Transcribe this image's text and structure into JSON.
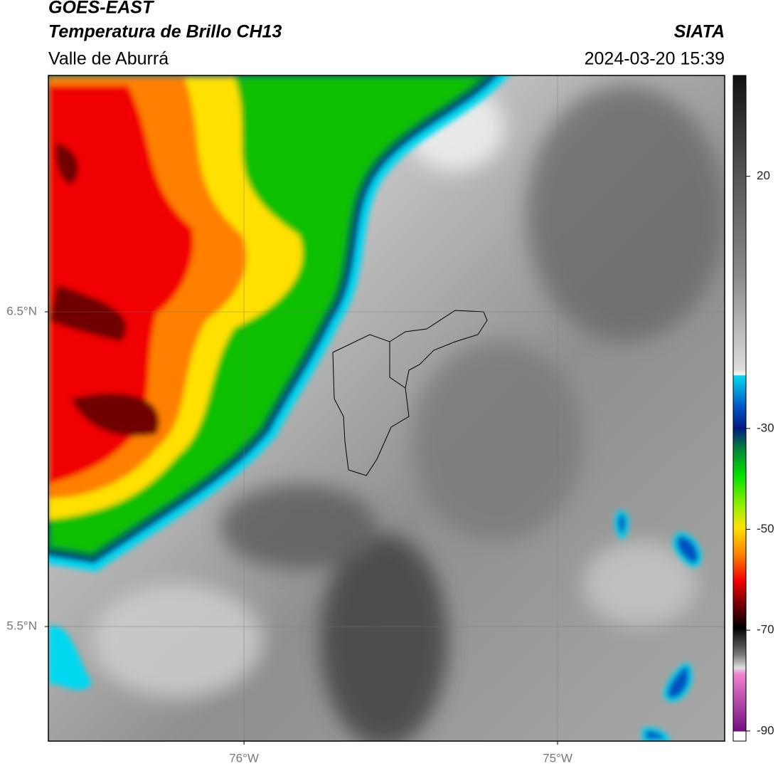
{
  "header": {
    "title": "GOES-EAST",
    "subtitle": "Temperatura de Brillo CH13",
    "region": "Valle de Aburrá",
    "source": "SIATA",
    "datetime": "2024-03-20 15:39"
  },
  "map": {
    "xlim": [
      -76.624,
      -74.467
    ],
    "ylim": [
      5.136,
      7.251
    ],
    "xticks": [
      {
        "value": -76,
        "label": "76°W"
      },
      {
        "value": -75,
        "label": "75°W"
      }
    ],
    "yticks": [
      {
        "value": 6.5,
        "label": "6.5°N"
      },
      {
        "value": 5.5,
        "label": "5.5°N"
      }
    ],
    "grid": true
  },
  "colorbar": {
    "range": [
      -92,
      40
    ],
    "ticks": [
      20,
      -30,
      -50,
      -70,
      -90
    ]
  }
}
